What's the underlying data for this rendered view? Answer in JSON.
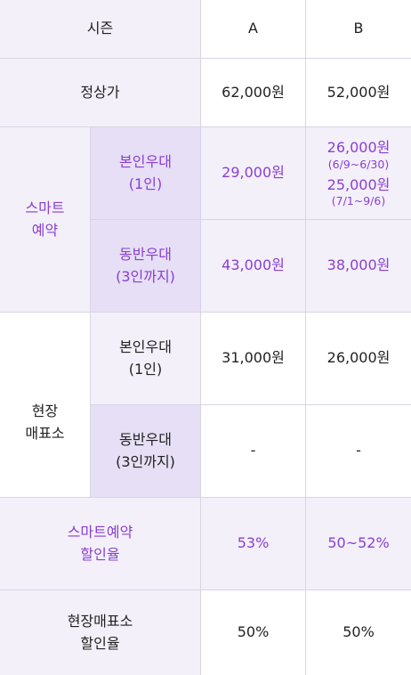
{
  "header": {
    "season": "시즌",
    "col_a": "A",
    "col_b": "B"
  },
  "regular": {
    "label": "정상가",
    "a": "62,000원",
    "b": "52,000원"
  },
  "smart": {
    "group_label": "스마트\n예약",
    "self": {
      "label": "본인우대\n(1인)",
      "a": "29,000원",
      "b_price1": "26,000원",
      "b_period1": "(6/9~6/30)",
      "b_price2": "25,000원",
      "b_period2": "(7/1~9/6)"
    },
    "companion": {
      "label": "동반우대\n(3인까지)",
      "a": "43,000원",
      "b": "38,000원"
    }
  },
  "onsite": {
    "group_label": "현장\n매표소",
    "self": {
      "label": "본인우대\n(1인)",
      "a": "31,000원",
      "b": "26,000원"
    },
    "companion": {
      "label": "동반우대\n(3인까지)",
      "a": "-",
      "b": "-"
    }
  },
  "smart_discount": {
    "label": "스마트예약\n할인율",
    "a": "53%",
    "b": "50~52%"
  },
  "onsite_discount": {
    "label": "현장매표소\n할인율",
    "a": "50%",
    "b": "50%"
  },
  "colors": {
    "accent": "#8a3fd1",
    "lavender": "#f3f0fa",
    "lavender_dark": "#e6dff5"
  }
}
